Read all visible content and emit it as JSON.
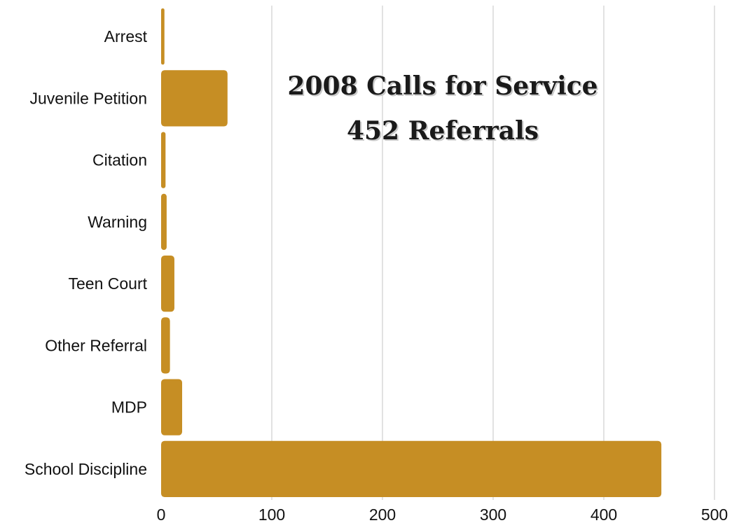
{
  "chart_data": {
    "type": "bar",
    "orientation": "horizontal",
    "title_lines": [
      "2008 Calls for Service",
      "452 Referrals"
    ],
    "categories": [
      "Arrest",
      "Juvenile Petition",
      "Citation",
      "Warning",
      "Teen Court",
      "Other Referral",
      "MDP",
      "School Discipline"
    ],
    "values": [
      3,
      60,
      4,
      5,
      12,
      8,
      19,
      452
    ],
    "xlim": [
      0,
      500
    ],
    "xticks": [
      0,
      100,
      200,
      300,
      400,
      500
    ],
    "grid": "vertical",
    "bar_color": "#C68E24"
  }
}
